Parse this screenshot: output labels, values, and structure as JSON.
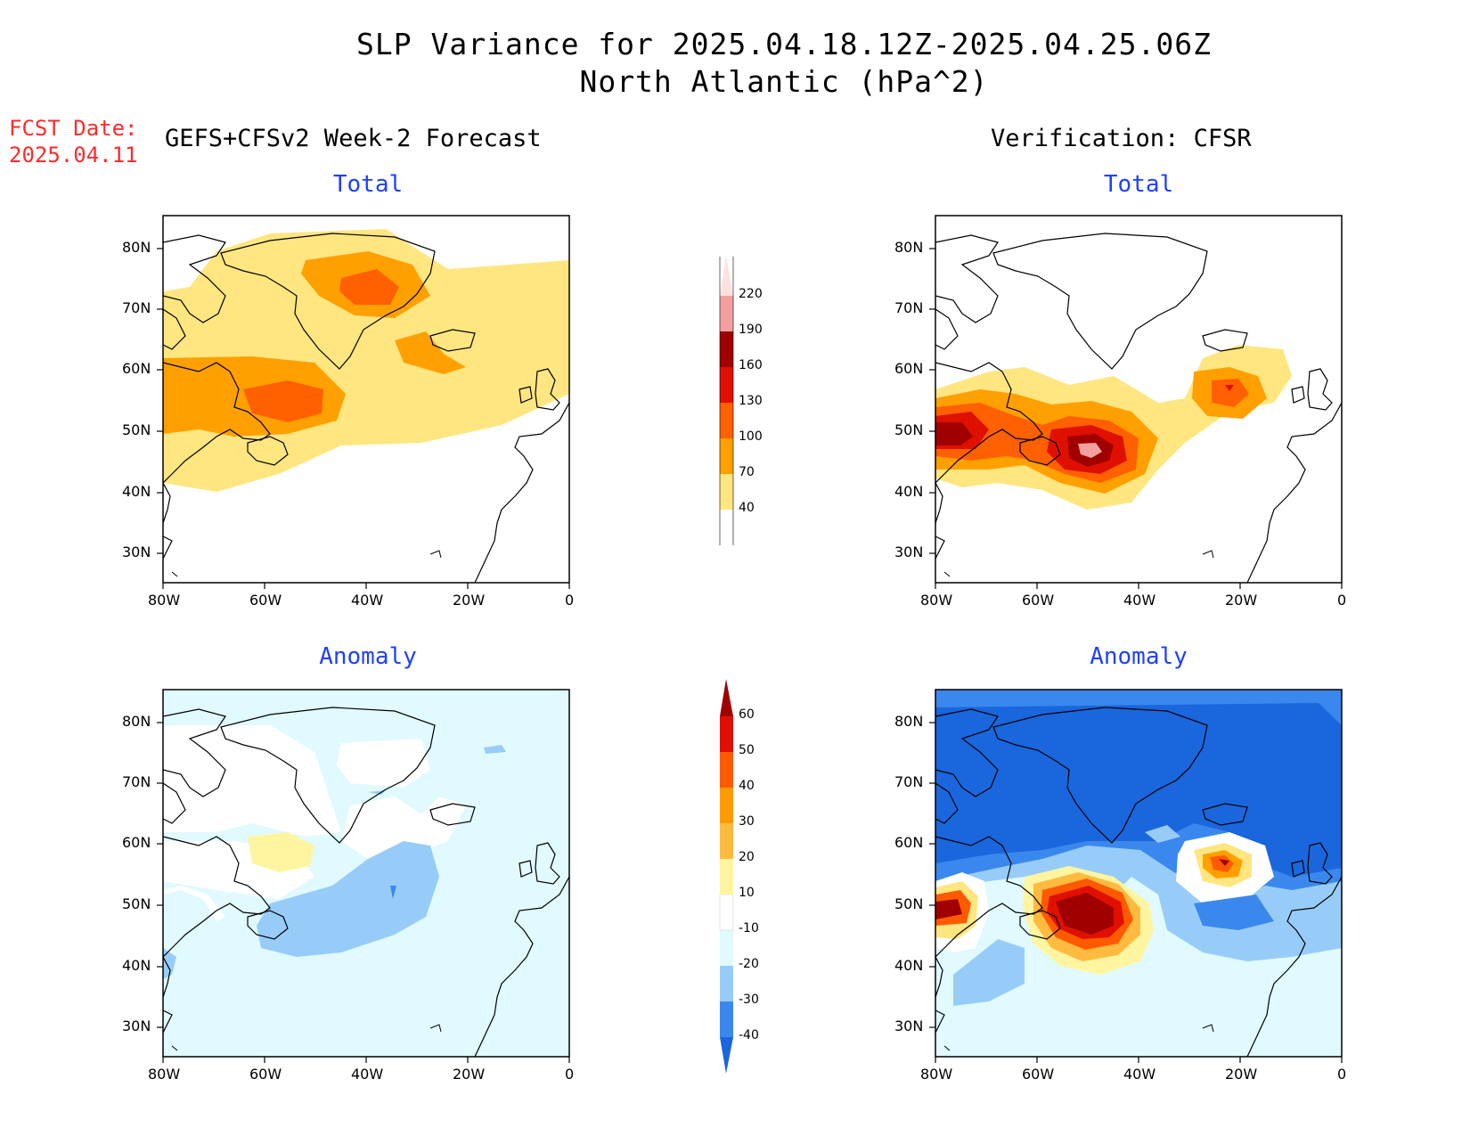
{
  "title_line1": "SLP Variance for 2025.04.18.12Z-2025.04.25.06Z",
  "title_line2": "North Atlantic (hPa^2)",
  "fcst_date_label": "FCST Date:",
  "fcst_date_value": "2025.04.11",
  "left_heading": "GEFS+CFSv2 Week-2 Forecast",
  "right_heading": "Verification: CFSR",
  "panel_titles": {
    "top_left": "Total",
    "top_right": "Total",
    "bottom_left": "Anomaly",
    "bottom_right": "Anomaly"
  },
  "lat_ticks": [
    "80N",
    "70N",
    "60N",
    "50N",
    "40N",
    "30N"
  ],
  "lon_ticks": [
    "80W",
    "60W",
    "40W",
    "20W",
    "0"
  ],
  "total_colorbar": {
    "levels": [
      "40",
      "70",
      "100",
      "130",
      "160",
      "190",
      "220"
    ],
    "colors": [
      "#ffe680",
      "#ffa000",
      "#ff6000",
      "#e01000",
      "#a00000",
      "#f4a0a0",
      "#ffe0e0"
    ]
  },
  "anomaly_colorbar": {
    "levels": [
      "-40",
      "-30",
      "-20",
      "-10",
      "10",
      "20",
      "30",
      "40",
      "50",
      "60"
    ],
    "colors": [
      "#1a66dd",
      "#3a88ee",
      "#98ccf8",
      "#e0faff",
      "#ffffff",
      "#fff5a0",
      "#ffbb40",
      "#ff9a00",
      "#ff5a00",
      "#e01000",
      "#a00000"
    ]
  }
}
